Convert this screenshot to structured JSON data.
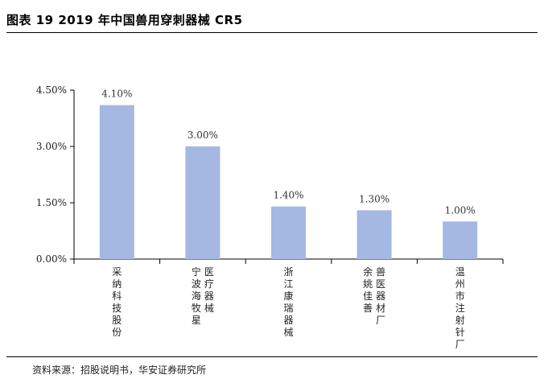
{
  "header": {
    "title": "图表 19 2019 年中国兽用穿刺器械 CR5"
  },
  "footer": {
    "source": "资料来源：招股说明书，华安证券研究所"
  },
  "chart_data": {
    "type": "bar",
    "categories": [
      "采纳科技股份",
      "宁波海牧星医疗器械",
      "浙江康瑞器械",
      "兽医器材厂余姚佳善",
      "温州市注射针厂"
    ],
    "category_columns": [
      [
        "采纳科技股份"
      ],
      [
        "宁波海牧星",
        "医疗器械"
      ],
      [
        "浙江康瑞器械"
      ],
      [
        "余姚佳善",
        "兽医器材厂"
      ],
      [
        "温州市注射针厂"
      ]
    ],
    "values": [
      4.1,
      3.0,
      1.4,
      1.3,
      1.0
    ],
    "value_labels": [
      "4.10%",
      "3.00%",
      "1.40%",
      "1.30%",
      "1.00%"
    ],
    "ylim": [
      0,
      4.5
    ],
    "yticks": [
      0,
      1.5,
      3.0,
      4.5
    ],
    "ytick_labels": [
      "0.00%",
      "1.50%",
      "3.00%",
      "4.50%"
    ],
    "grid": false,
    "colors": {
      "bar": "#a5b8e2",
      "axis": "#000000"
    }
  }
}
